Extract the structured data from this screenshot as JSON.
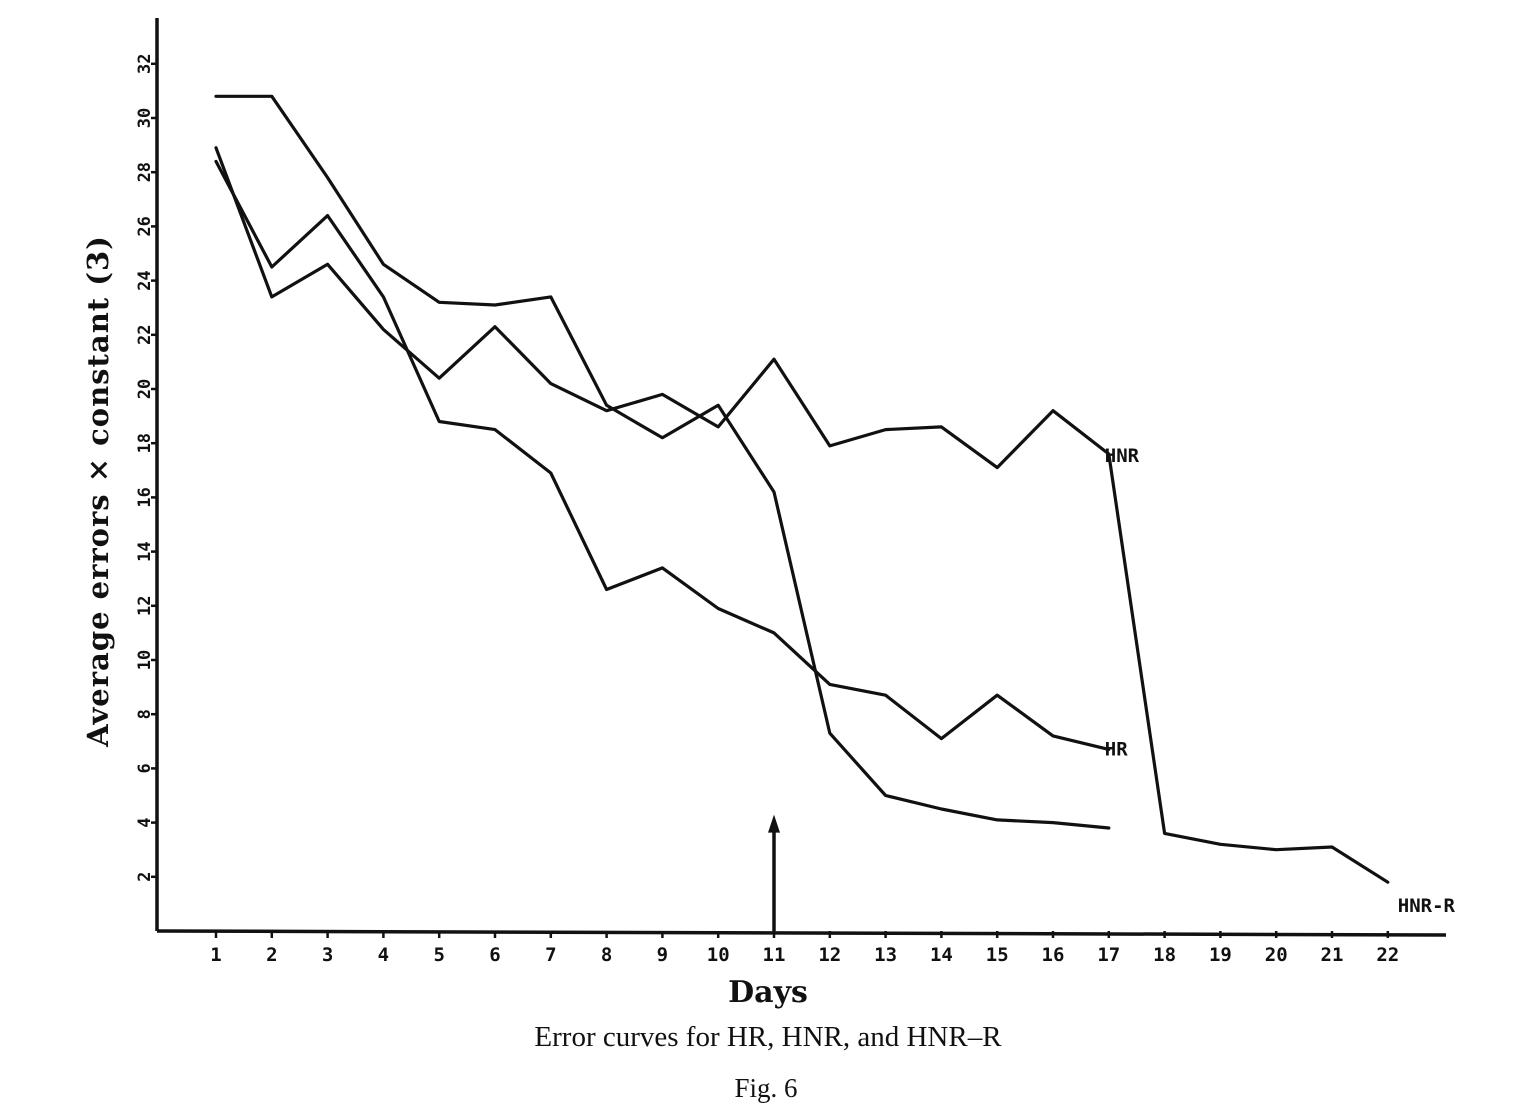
{
  "chart_data": {
    "type": "line",
    "title": "",
    "xlabel": "Days",
    "ylabel": "Average errors × constant (3)",
    "caption": "Error curves for HR, HNR, and HNR–R",
    "figure_label": "Fig. 6",
    "xlim": [
      0,
      23
    ],
    "ylim": [
      0,
      33
    ],
    "x_ticks": [
      1,
      2,
      3,
      4,
      5,
      6,
      7,
      8,
      9,
      10,
      11,
      12,
      13,
      14,
      15,
      16,
      17,
      18,
      19,
      20,
      21,
      22
    ],
    "x_tick_labels": [
      "1",
      "2",
      "3",
      "4",
      "5",
      "6",
      "7",
      "8",
      "9",
      "10",
      "11",
      "12",
      "13",
      "14",
      "15",
      "16",
      "17",
      "18",
      "19",
      "20",
      "21",
      "22"
    ],
    "y_ticks": [
      2,
      4,
      6,
      8,
      10,
      12,
      14,
      16,
      18,
      20,
      22,
      24,
      26,
      28,
      30,
      32
    ],
    "y_tick_labels": [
      "2",
      "4",
      "6",
      "8",
      "10",
      "12",
      "14",
      "16",
      "18",
      "20",
      "22",
      "24",
      "26",
      "28",
      "30",
      "32"
    ],
    "grid": false,
    "annotations": [
      {
        "type": "arrow",
        "x": 11,
        "y_from": 0,
        "y_to": 4
      }
    ],
    "series": [
      {
        "name": "HNR",
        "x": [
          1,
          2,
          3,
          4,
          5,
          6,
          7,
          8,
          9,
          10,
          11,
          12,
          13,
          14,
          15,
          16,
          17
        ],
        "y": [
          30.8,
          30.8,
          27.8,
          24.6,
          23.2,
          23.1,
          23.4,
          19.4,
          18.2,
          19.4,
          16.2,
          7.3,
          5.0,
          4.5,
          4.1,
          4.0,
          3.8
        ]
      },
      {
        "name": "HR",
        "x": [
          1,
          2,
          3,
          4,
          5,
          6,
          7,
          8,
          9,
          10,
          11,
          12,
          13,
          14,
          15,
          16,
          17
        ],
        "y": [
          28.4,
          24.5,
          26.4,
          23.4,
          18.8,
          18.5,
          16.9,
          12.6,
          13.4,
          11.9,
          11.0,
          9.1,
          8.7,
          7.1,
          8.7,
          7.2,
          6.7
        ]
      },
      {
        "name": "HNR-R",
        "x": [
          1,
          2,
          3,
          4,
          5,
          6,
          7,
          8,
          9,
          10,
          11,
          12,
          13,
          14,
          15,
          16,
          17,
          18,
          19,
          20,
          21,
          22
        ],
        "y": [
          28.9,
          23.4,
          24.6,
          22.2,
          20.4,
          22.3,
          20.2,
          19.2,
          19.8,
          18.6,
          21.1,
          17.9,
          18.5,
          18.6,
          17.1,
          19.2,
          17.6,
          3.6,
          3.2,
          3.0,
          3.1,
          1.8
        ]
      }
    ],
    "series_labels": {
      "HNR": "HNR",
      "HR": "HR",
      "HNR-R": "HNR-R"
    }
  }
}
